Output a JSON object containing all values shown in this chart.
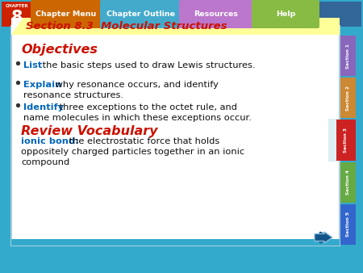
{
  "title": "Section 8.3  Molecular Structures",
  "title_color": "#cc1100",
  "title_bg": "#ffff99",
  "objectives_header": "Objectives",
  "objectives_color": "#cc1100",
  "bullets": [
    {
      "keyword": "List",
      "rest": " the basic steps used to draw Lewis structures.",
      "line2": ""
    },
    {
      "keyword": "Explain",
      "rest": " why resonance occurs, and identify",
      "line2": "resonance structures."
    },
    {
      "keyword": "Identify",
      "rest": " three exceptions to the octet rule, and",
      "line2": "name molecules in which these exceptions occur."
    }
  ],
  "keyword_color": "#0066bb",
  "bullet_text_color": "#111111",
  "review_header": "Review Vocabulary",
  "review_color": "#cc1100",
  "review_keyword": "ionic bond:",
  "review_keyword_color": "#0066bb",
  "review_lines": [
    " the electrostatic force that holds",
    "oppositely charged particles together in an ionic",
    "compound"
  ],
  "review_text_color": "#111111",
  "bg_color": "#ffffff",
  "outer_border_color": "#3399cc",
  "chapter_box_color": "#cc2200",
  "chapter_number": "8",
  "chapter_label": "CHAPTER",
  "nav_buttons": [
    "Chapter Menu",
    "Chapter Outline",
    "Resources",
    "Help"
  ],
  "nav_btn_colors": [
    "#cc6600",
    "#44aacc",
    "#bb77cc",
    "#88bb44"
  ],
  "nav_btn_text_colors": [
    "#ffffff",
    "#ffffff",
    "#ffffff",
    "#ffffff"
  ],
  "side_tabs": [
    "Section 1",
    "Section 2",
    "Section 3",
    "Section 4",
    "Section 5"
  ],
  "side_tab_colors": [
    "#8866bb",
    "#cc8833",
    "#cc2222",
    "#66aa44",
    "#3366cc"
  ],
  "arrow_color": "#115588",
  "arrow_outline": "#88bbdd",
  "light_blue_tab_color": "#cce8f0"
}
